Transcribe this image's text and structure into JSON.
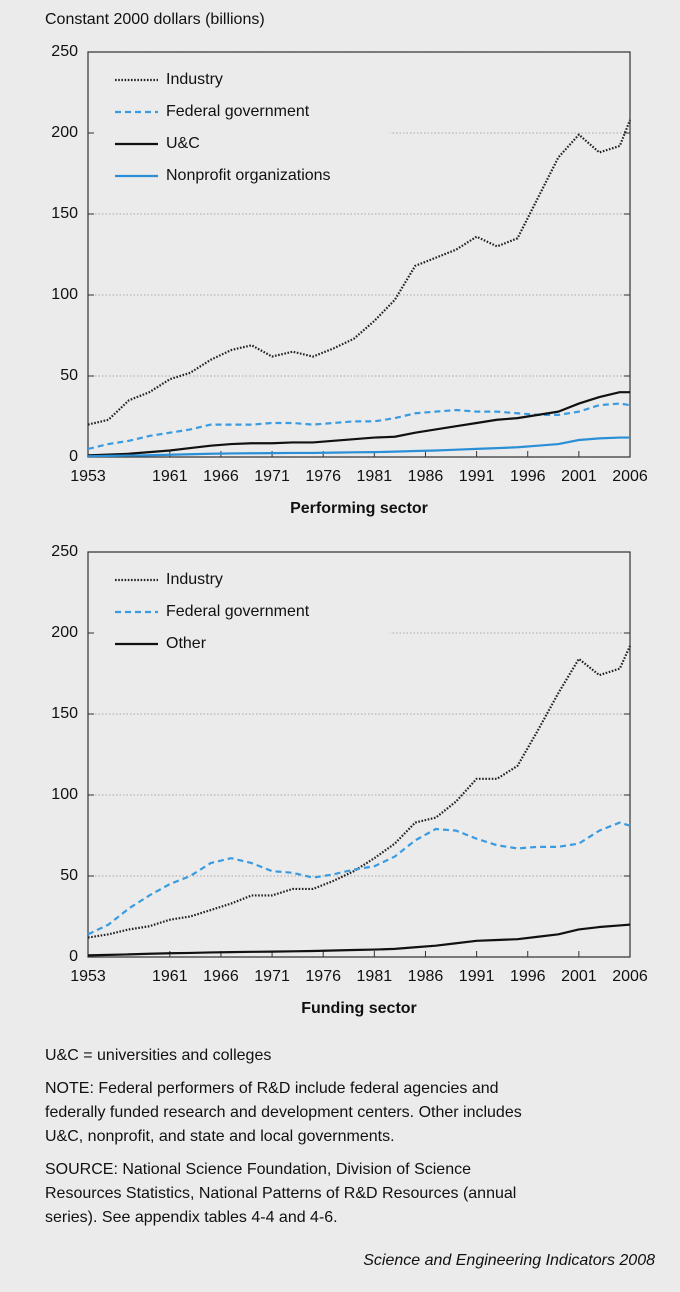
{
  "chart_data": [
    {
      "type": "line",
      "ylabel": "Constant 2000 dollars (billions)",
      "xlabel": "Performing sector",
      "x": [
        1953,
        1955,
        1957,
        1959,
        1961,
        1963,
        1965,
        1967,
        1969,
        1971,
        1973,
        1975,
        1977,
        1979,
        1981,
        1983,
        1985,
        1987,
        1989,
        1991,
        1993,
        1995,
        1997,
        1999,
        2001,
        2003,
        2005,
        2006
      ],
      "xlim": [
        1953,
        2006
      ],
      "xticks": [
        1953,
        1961,
        1966,
        1971,
        1976,
        1981,
        1986,
        1991,
        1996,
        2001,
        2006
      ],
      "ylim": [
        0,
        250
      ],
      "yticks": [
        0,
        50,
        100,
        150,
        200,
        250
      ],
      "grid": true,
      "legend": "upper left",
      "series": [
        {
          "name": "Industry",
          "color": "#222222",
          "style": "dotted",
          "values": [
            20,
            23,
            35,
            40,
            48,
            52,
            60,
            66,
            69,
            62,
            65,
            62,
            67,
            73,
            84,
            97,
            118,
            123,
            128,
            136,
            130,
            135,
            160,
            185,
            199,
            188,
            192,
            208
          ]
        },
        {
          "name": "Federal government",
          "color": "#3a9be0",
          "style": "dashed",
          "values": [
            5,
            8,
            10,
            13,
            15,
            17,
            20,
            20,
            20,
            21,
            21,
            20,
            21,
            22,
            22,
            24,
            27,
            28,
            29,
            28,
            28,
            27,
            26,
            26,
            28,
            32,
            33,
            32
          ]
        },
        {
          "name": "U&C",
          "color": "#111111",
          "style": "solid",
          "values": [
            1,
            1.5,
            2,
            3,
            4,
            5.5,
            7,
            8,
            8.5,
            8.5,
            9,
            9,
            10,
            11,
            12,
            12.5,
            15,
            17,
            19,
            21,
            23,
            24,
            26,
            28,
            33,
            37,
            40,
            40
          ]
        },
        {
          "name": "Nonprofit organizations",
          "color": "#2a8fd6",
          "style": "solid",
          "values": [
            0.5,
            0.7,
            0.9,
            1.1,
            1.4,
            1.7,
            2,
            2.2,
            2.3,
            2.4,
            2.5,
            2.5,
            2.7,
            2.9,
            3,
            3.3,
            3.7,
            4,
            4.5,
            5,
            5.5,
            6,
            7,
            8,
            10.5,
            11.5,
            12,
            12
          ]
        }
      ]
    },
    {
      "type": "line",
      "xlabel": "Funding sector",
      "x": [
        1953,
        1955,
        1957,
        1959,
        1961,
        1963,
        1965,
        1967,
        1969,
        1971,
        1973,
        1975,
        1977,
        1979,
        1981,
        1983,
        1985,
        1987,
        1989,
        1991,
        1993,
        1995,
        1997,
        1999,
        2001,
        2003,
        2005,
        2006
      ],
      "xlim": [
        1953,
        2006
      ],
      "xticks": [
        1953,
        1961,
        1966,
        1971,
        1976,
        1981,
        1986,
        1991,
        1996,
        2001,
        2006
      ],
      "ylim": [
        0,
        250
      ],
      "yticks": [
        0,
        50,
        100,
        150,
        200,
        250
      ],
      "grid": true,
      "legend": "upper left",
      "series": [
        {
          "name": "Industry",
          "color": "#222222",
          "style": "dotted",
          "values": [
            12,
            14,
            17,
            19,
            23,
            25,
            29,
            33,
            38,
            38,
            42,
            42,
            47,
            53,
            61,
            70,
            83,
            86,
            96,
            110,
            110,
            118,
            140,
            163,
            184,
            174,
            178,
            192
          ]
        },
        {
          "name": "Federal government",
          "color": "#3a9be0",
          "style": "dashed",
          "values": [
            14,
            20,
            30,
            38,
            45,
            50,
            58,
            61,
            58,
            53,
            52,
            49,
            51,
            54,
            56,
            62,
            72,
            79,
            78,
            73,
            69,
            67,
            68,
            68,
            70,
            78,
            83,
            81
          ]
        },
        {
          "name": "Other",
          "color": "#111111",
          "style": "solid",
          "values": [
            1,
            1.3,
            1.6,
            2,
            2.3,
            2.5,
            2.8,
            3,
            3.2,
            3.3,
            3.5,
            3.7,
            4,
            4.3,
            4.6,
            5,
            6,
            7,
            8.5,
            10,
            10.5,
            11,
            12.5,
            14,
            17,
            18.5,
            19.5,
            20
          ]
        }
      ]
    }
  ],
  "definition": "U&C = universities and colleges",
  "note": [
    "NOTE: Federal performers of R&D include federal agencies and",
    "federally funded research and development centers. Other includes",
    "U&C, nonprofit, and state and local governments."
  ],
  "source": [
    "SOURCE: National Science Foundation, Division of Science",
    "Resources Statistics, National Patterns of R&D Resources (annual",
    "series). See appendix tables 4-4 and 4-6."
  ],
  "credit": "Science and Engineering Indicators 2008"
}
